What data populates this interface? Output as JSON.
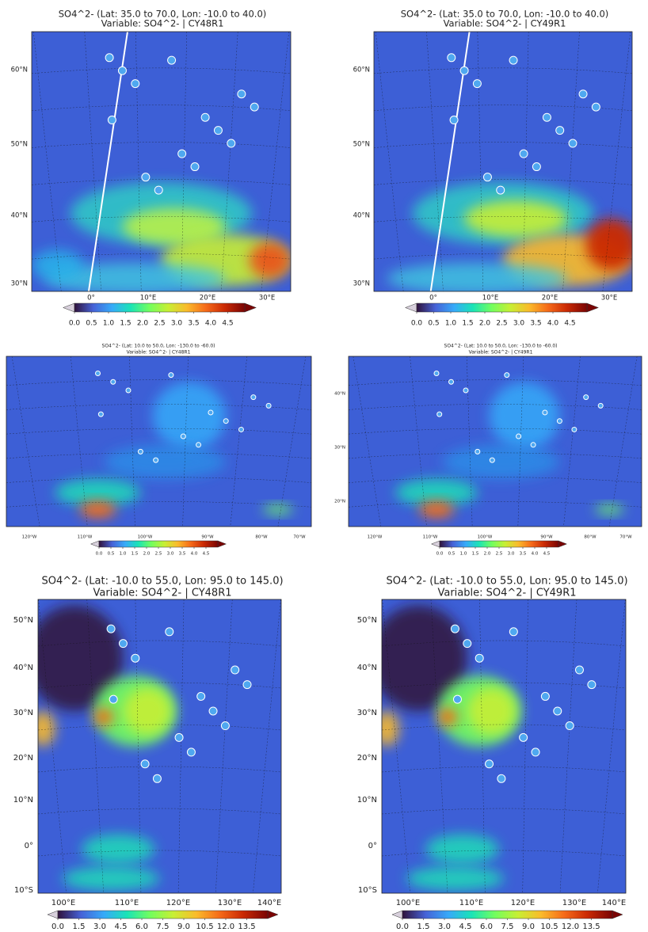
{
  "panels": [
    {
      "title": "SO4^2- (Lat: 35.0 to 70.0, Lon: -10.0 to 40.0)",
      "subtitle": "Variable: SO4^2- | CY48R1",
      "lat_labels": [
        "60°N",
        "50°N",
        "40°N",
        "30°N"
      ],
      "lon_labels": [
        "0°",
        "10°E",
        "20°E",
        "30°E"
      ],
      "colorbar": {
        "lim": [
          0,
          5
        ],
        "ticks": [
          {
            "value": 0,
            "label": "0.0"
          },
          0.5,
          {
            "value": 1,
            "label": "1.0"
          },
          1.5,
          {
            "value": 2,
            "label": "2.0"
          },
          2.5,
          {
            "value": 3,
            "label": "3.0"
          },
          3.5,
          {
            "value": 4,
            "label": "4.0"
          },
          4.5
        ]
      }
    },
    {
      "title": "SO4^2- (Lat: 35.0 to 70.0, Lon: -10.0 to 40.0)",
      "subtitle": "Variable: SO4^2- | CY49R1",
      "lat_labels": [
        "60°N",
        "50°N",
        "40°N",
        "30°N"
      ],
      "lon_labels": [
        "0°",
        "10°E",
        "20°E",
        "30°E"
      ],
      "colorbar": {
        "lim": [
          0,
          5
        ],
        "ticks": [
          {
            "value": 0,
            "label": "0.0"
          },
          0.5,
          {
            "value": 1,
            "label": "1.0"
          },
          1.5,
          {
            "value": 2,
            "label": "2.0"
          },
          2.5,
          {
            "value": 3,
            "label": "3.0"
          },
          3.5,
          {
            "value": 4,
            "label": "4.0"
          },
          4.5
        ]
      }
    },
    {
      "title": "SO4^2- (Lat: 10.0 to 50.0, Lon: -130.0 to -60.0)",
      "subtitle": "Variable: SO4^2- | CY48R1",
      "lat_labels": [],
      "lon_labels": [
        "120°W",
        "110°W",
        "100°W",
        "90°W",
        "80°W",
        "70°W"
      ],
      "colorbar": {
        "lim": [
          0,
          5
        ],
        "ticks": [
          {
            "value": 0,
            "label": "0.0"
          },
          0.5,
          {
            "value": 1,
            "label": "1.0"
          },
          1.5,
          {
            "value": 2,
            "label": "2.0"
          },
          2.5,
          {
            "value": 3,
            "label": "3.0"
          },
          3.5,
          {
            "value": 4,
            "label": "4.0"
          },
          4.5
        ]
      }
    },
    {
      "title": "SO4^2- (Lat: 10.0 to 50.0, Lon: -130.0 to -60.0)",
      "subtitle": "Variable: SO4^2- | CY49R1",
      "lat_labels": [
        "40°N",
        "30°N",
        "20°N"
      ],
      "lon_labels": [
        "120°W",
        "110°W",
        "100°W",
        "90°W",
        "80°W",
        "70°W"
      ],
      "colorbar": {
        "lim": [
          0,
          5
        ],
        "ticks": [
          {
            "value": 0,
            "label": "0.0"
          },
          0.5,
          {
            "value": 1,
            "label": "1.0"
          },
          1.5,
          {
            "value": 2,
            "label": "2.0"
          },
          2.5,
          {
            "value": 3,
            "label": "3.0"
          },
          3.5,
          {
            "value": 4,
            "label": "4.0"
          },
          4.5
        ]
      }
    },
    {
      "title": "SO4^2- (Lat: -10.0 to 55.0, Lon: 95.0 to 145.0)",
      "subtitle": "Variable: SO4^2- | CY48R1",
      "lat_labels": [
        "50°N",
        "40°N",
        "30°N",
        "20°N",
        "10°N",
        "0°",
        "10°S"
      ],
      "lon_labels": [
        "100°E",
        "110°E",
        "120°E",
        "130°E",
        "140°E"
      ],
      "colorbar": {
        "lim": [
          0,
          15
        ],
        "ticks": [
          {
            "value": 0,
            "label": "0.0"
          },
          1.5,
          {
            "value": 3,
            "label": "3.0"
          },
          4.5,
          {
            "value": 6,
            "label": "6.0"
          },
          7.5,
          {
            "value": 9,
            "label": "9.0"
          },
          10.5,
          {
            "value": 12,
            "label": "12.0"
          },
          13.5
        ]
      }
    },
    {
      "title": "SO4^2- (Lat: -10.0 to 55.0, Lon: 95.0 to 145.0)",
      "subtitle": "Variable: SO4^2- | CY49R1",
      "lat_labels": [
        "50°N",
        "40°N",
        "30°N",
        "20°N",
        "10°N",
        "0°",
        "10°S"
      ],
      "lon_labels": [
        "100°E",
        "110°E",
        "120°E",
        "130°E",
        "140°E"
      ],
      "colorbar": {
        "lim": [
          0,
          15
        ],
        "ticks": [
          {
            "value": 0,
            "label": "0.0"
          },
          1.5,
          {
            "value": 3,
            "label": "3.0"
          },
          4.5,
          {
            "value": 6,
            "label": "6.0"
          },
          7.5,
          {
            "value": 9,
            "label": "9.0"
          },
          10.5,
          {
            "value": 12,
            "label": "12.0"
          },
          13.5
        ]
      }
    }
  ]
}
